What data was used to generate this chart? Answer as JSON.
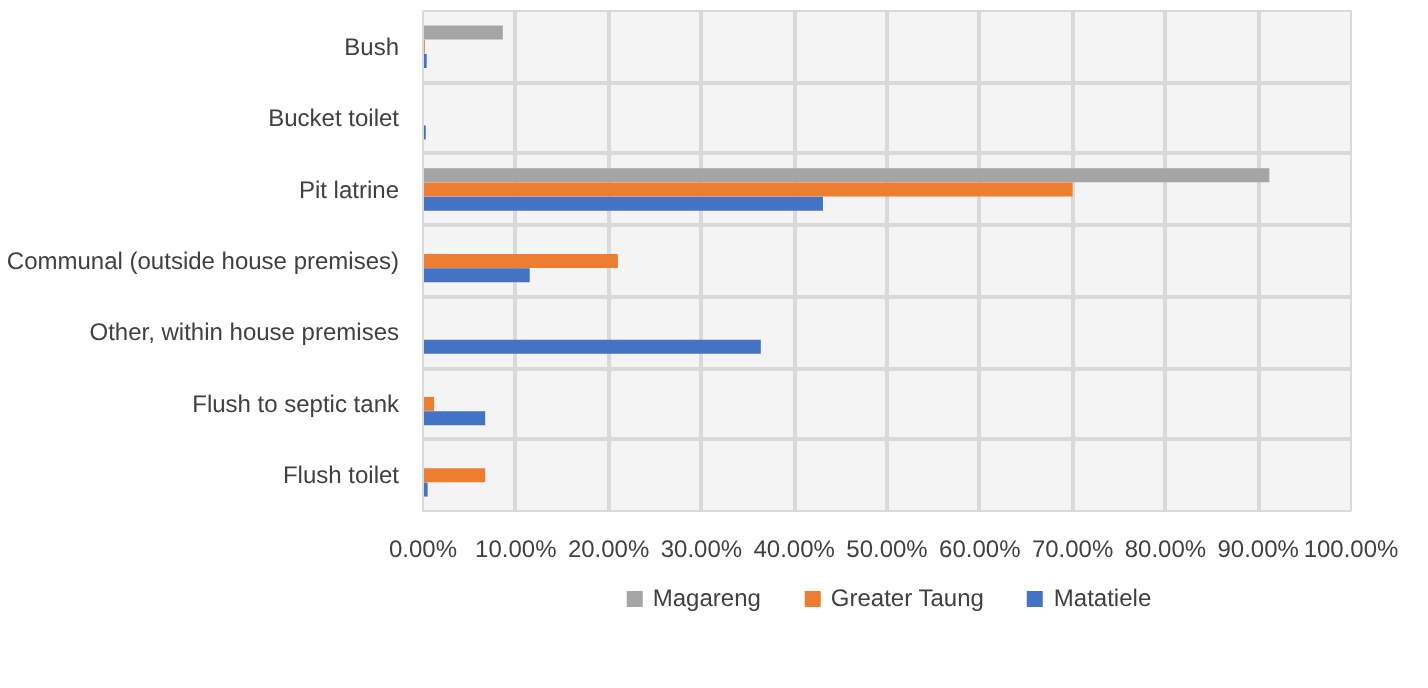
{
  "chart_data": {
    "type": "bar",
    "orientation": "horizontal",
    "categories": [
      "Bush",
      "Bucket toilet",
      "Pit latrine",
      "Communal (outside house premises)",
      "Other, within house premises",
      "Flush to septic tank",
      "Flush toilet"
    ],
    "series": [
      {
        "name": "Magareng",
        "color": "#a5a5a5",
        "values": [
          8.6,
          0,
          91.2,
          0,
          0,
          0,
          0
        ]
      },
      {
        "name": "Greater Taung",
        "color": "#ed7d31",
        "values": [
          0.2,
          null,
          70,
          21,
          null,
          1.2,
          6.7
        ]
      },
      {
        "name": "Matatiele",
        "color": "#4472c4",
        "values": [
          0.4,
          0.3,
          43.1,
          11.5,
          36.4,
          6.7,
          0.5
        ]
      }
    ],
    "xlim": [
      0,
      100
    ],
    "xticks": [
      {
        "value": 0,
        "label": "0.00%"
      },
      {
        "value": 10,
        "label": "10.00%"
      },
      {
        "value": 20,
        "label": "20.00%"
      },
      {
        "value": 30,
        "label": "30.00%"
      },
      {
        "value": 40,
        "label": "40.00%"
      },
      {
        "value": 50,
        "label": "50.00%"
      },
      {
        "value": 60,
        "label": "60.00%"
      },
      {
        "value": 70,
        "label": "70.00%"
      },
      {
        "value": 80,
        "label": "80.00%"
      },
      {
        "value": 90,
        "label": "90.00%"
      },
      {
        "value": 100,
        "label": "100.00%"
      }
    ],
    "grid": true,
    "legend": "bottom"
  }
}
